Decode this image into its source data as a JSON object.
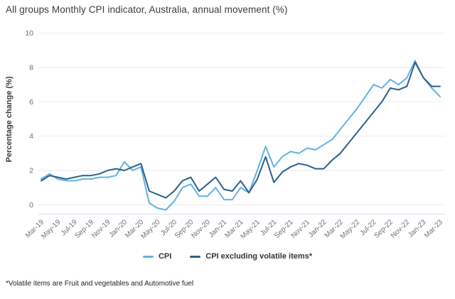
{
  "title": "All groups Monthly CPI indicator, Australia, annual movement (%)",
  "footnote": "*Volatile items are Fruit and vegetables and Automotive fuel",
  "colors": {
    "gridline": "#ebebf0",
    "axis_line": "#d3e4f3",
    "tick_text": "#6d6d76",
    "title_text": "#3b3b3b",
    "legend_text": "#333333",
    "footnote_text": "#222222",
    "background": "#ffffff"
  },
  "chart_data": {
    "type": "line",
    "title": "All groups Monthly CPI indicator, Australia, annual movement (%)",
    "xlabel": "",
    "ylabel": "Percentage change (%)",
    "ylim": [
      0,
      10
    ],
    "yticks": [
      0,
      2,
      4,
      6,
      8,
      10
    ],
    "grid": "horizontal",
    "legend_position": "bottom",
    "x": [
      "Mar-19",
      "Apr-19",
      "May-19",
      "Jun-19",
      "Jul-19",
      "Aug-19",
      "Sep-19",
      "Oct-19",
      "Nov-19",
      "Dec-19",
      "Jan-20",
      "Feb-20",
      "Mar-20",
      "Apr-20",
      "May-20",
      "Jun-20",
      "Jul-20",
      "Aug-20",
      "Sep-20",
      "Oct-20",
      "Nov-20",
      "Dec-20",
      "Jan-21",
      "Feb-21",
      "Mar-21",
      "Apr-21",
      "May-21",
      "Jun-21",
      "Jul-21",
      "Aug-21",
      "Sep-21",
      "Oct-21",
      "Nov-21",
      "Dec-21",
      "Jan-22",
      "Feb-22",
      "Mar-22",
      "Apr-22",
      "May-22",
      "Jun-22",
      "Jul-22",
      "Aug-22",
      "Sep-22",
      "Oct-22",
      "Nov-22",
      "Dec-22",
      "Jan-23",
      "Feb-23",
      "Mar-23"
    ],
    "xtick_labels": [
      "Mar-19",
      "May-19",
      "Jul-19",
      "Sep-19",
      "Nov-19",
      "Jan-20",
      "Mar-20",
      "May-20",
      "Jul-20",
      "Sep-20",
      "Nov-20",
      "Jan-21",
      "Mar-21",
      "May-21",
      "Jul-21",
      "Sep-21",
      "Nov-21",
      "Jan-22",
      "Mar-22",
      "May-22",
      "Jul-22",
      "Sep-22",
      "Nov-22",
      "Jan-23",
      "Mar-23"
    ],
    "series": [
      {
        "name": "CPI",
        "color": "#62b2e2",
        "values": [
          1.5,
          1.8,
          1.5,
          1.4,
          1.4,
          1.5,
          1.5,
          1.6,
          1.6,
          1.7,
          2.5,
          2.0,
          2.2,
          0.1,
          -0.2,
          -0.3,
          0.2,
          1.0,
          1.2,
          0.5,
          0.5,
          1.0,
          0.3,
          0.3,
          1.0,
          0.7,
          2.0,
          3.4,
          2.2,
          2.8,
          3.1,
          3.0,
          3.3,
          3.2,
          3.5,
          3.8,
          4.4,
          5.0,
          5.6,
          6.3,
          7.0,
          6.8,
          7.3,
          7.0,
          7.4,
          8.4,
          7.4,
          6.8,
          6.3
        ]
      },
      {
        "name": "CPI excluding volatile items*",
        "color": "#2b608c",
        "values": [
          1.4,
          1.7,
          1.6,
          1.5,
          1.6,
          1.7,
          1.7,
          1.8,
          2.0,
          2.1,
          2.0,
          2.2,
          2.4,
          0.8,
          0.6,
          0.4,
          0.8,
          1.4,
          1.6,
          0.8,
          1.2,
          1.6,
          0.9,
          0.8,
          1.4,
          0.7,
          1.5,
          2.8,
          1.3,
          1.9,
          2.2,
          2.4,
          2.3,
          2.1,
          2.1,
          2.6,
          3.0,
          3.6,
          4.2,
          4.8,
          5.4,
          6.0,
          6.8,
          6.7,
          6.9,
          8.3,
          7.4,
          6.9,
          6.9
        ]
      }
    ]
  }
}
